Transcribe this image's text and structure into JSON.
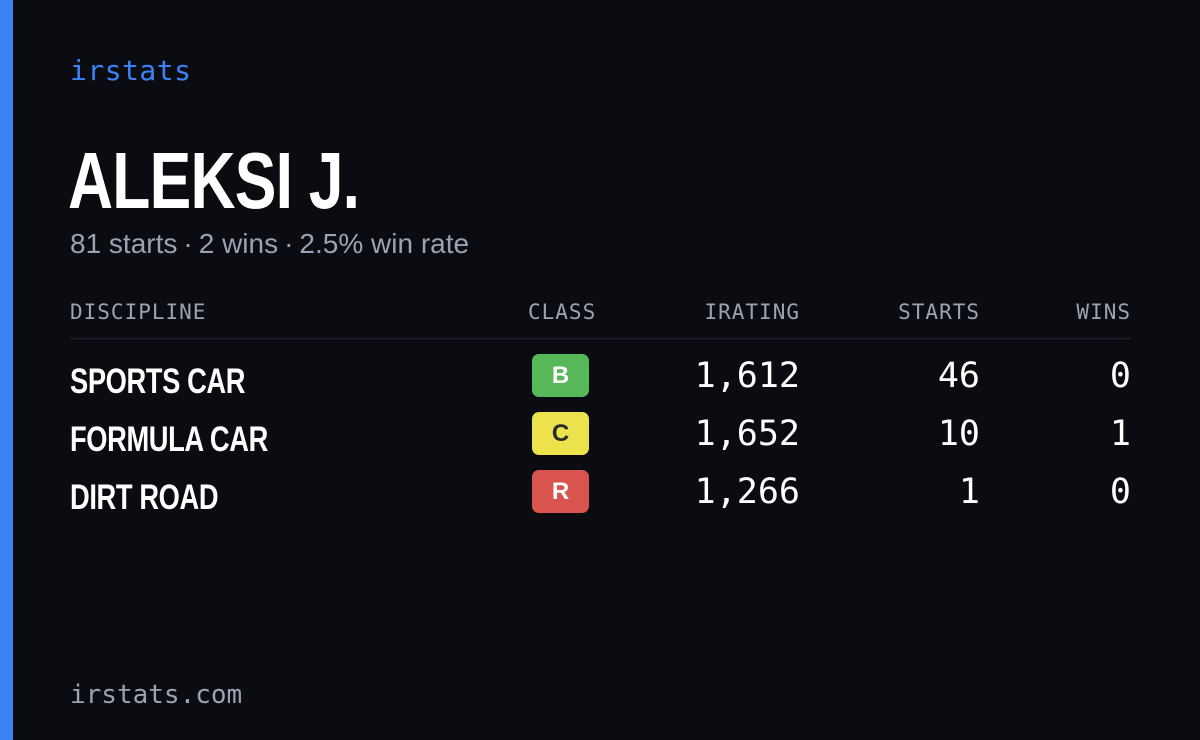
{
  "brand": "irstats",
  "driver": {
    "name": "ALEKSI J.",
    "starts_text": "81 starts",
    "wins_text": "2 wins",
    "win_rate_text": "2.5% win rate",
    "separator": "·"
  },
  "table": {
    "headers": {
      "discipline": "DISCIPLINE",
      "class": "CLASS",
      "irating": "IRATING",
      "starts": "STARTS",
      "wins": "WINS"
    },
    "rows": [
      {
        "discipline": "SPORTS CAR",
        "class": "B",
        "class_bg": "#57b85a",
        "class_fg": "#ffffff",
        "irating": "1,612",
        "starts": "46",
        "wins": "0"
      },
      {
        "discipline": "FORMULA CAR",
        "class": "C",
        "class_bg": "#ece24c",
        "class_fg": "#2a2a2a",
        "irating": "1,652",
        "starts": "10",
        "wins": "1"
      },
      {
        "discipline": "DIRT ROAD",
        "class": "R",
        "class_bg": "#d9534f",
        "class_fg": "#ffffff",
        "irating": "1,266",
        "starts": "1",
        "wins": "0"
      }
    ]
  },
  "footer": "irstats.com",
  "colors": {
    "background": "#0a0c12",
    "accent": "#3b82f6",
    "muted_text": "#9aa3b2",
    "primary_text": "#ffffff"
  }
}
